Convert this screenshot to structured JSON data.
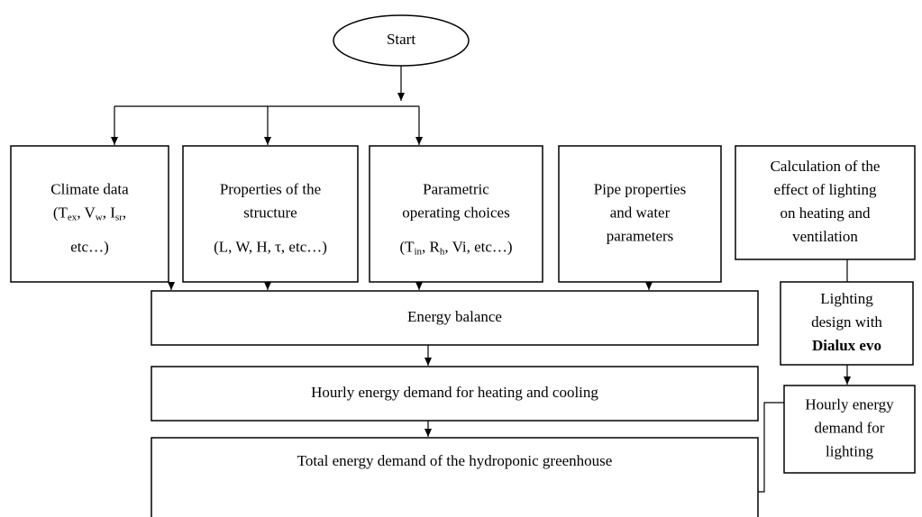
{
  "nodes": [
    {
      "id": "start",
      "lines": [
        [
          "Start"
        ]
      ]
    },
    {
      "id": "climate",
      "lines": [
        [
          "Climate data"
        ],
        [
          "(T",
          {
            "text": "ex",
            "sub": true
          },
          ", V",
          {
            "text": "w",
            "sub": true
          },
          ", I",
          {
            "text": "sr",
            "sub": true
          },
          ","
        ],
        [
          "etc…)"
        ]
      ]
    },
    {
      "id": "structure",
      "lines": [
        [
          "Properties of the"
        ],
        [
          "structure"
        ],
        [
          "(L, W, H, τ, etc…)"
        ]
      ]
    },
    {
      "id": "parametric",
      "lines": [
        [
          "Parametric"
        ],
        [
          "operating choices"
        ],
        [
          "(T",
          {
            "text": "in",
            "sub": true
          },
          ", R",
          {
            "text": "h",
            "sub": true
          },
          ", Vi, etc…)"
        ]
      ]
    },
    {
      "id": "pipe",
      "lines": [
        [
          "Pipe properties"
        ],
        [
          "and water"
        ],
        [
          "parameters"
        ]
      ]
    },
    {
      "id": "calc",
      "lines": [
        [
          "Calculation of the"
        ],
        [
          "effect of lighting"
        ],
        [
          "on heating and"
        ],
        [
          "ventilation"
        ]
      ]
    },
    {
      "id": "balance",
      "lines": [
        [
          "Energy balance"
        ]
      ]
    },
    {
      "id": "hourly",
      "lines": [
        [
          "Hourly energy demand for heating and cooling"
        ]
      ]
    },
    {
      "id": "total",
      "lines": [
        [
          "Total energy demand of the hydroponic greenhouse"
        ]
      ]
    },
    {
      "id": "dialux",
      "lines": [
        [
          "Lighting"
        ],
        [
          "design with"
        ],
        [
          {
            "text": "Dialux evo",
            "bold": true
          }
        ]
      ]
    },
    {
      "id": "hlight",
      "lines": [
        [
          "Hourly energy"
        ],
        [
          "demand for"
        ],
        [
          "lighting"
        ]
      ]
    }
  ]
}
